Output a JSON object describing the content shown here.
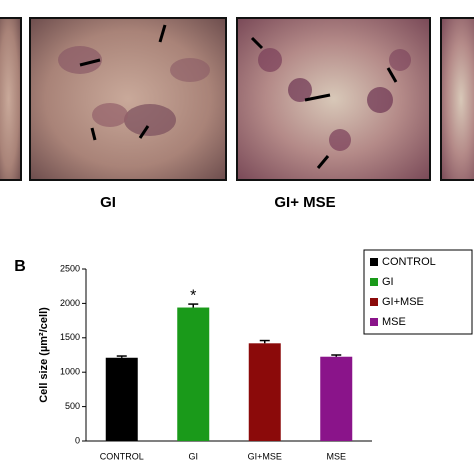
{
  "panels": {
    "labels": [
      "GI",
      "GI+ MSE"
    ],
    "letter": "B"
  },
  "chart_data": {
    "type": "bar",
    "y_label": "Cell size (µm²/cell)",
    "categories": [
      "CONTROL",
      "GI",
      "GI+MSE",
      "MSE"
    ],
    "values": [
      1210,
      1940,
      1420,
      1225
    ],
    "errors": [
      25,
      50,
      40,
      25
    ],
    "colors": [
      "#000000",
      "#1a9a1a",
      "#8b0a0a",
      "#8a148a"
    ],
    "annotation": "*",
    "ylim": [
      0,
      2500
    ],
    "yticks": [
      0,
      500,
      1000,
      1500,
      2000,
      2500
    ],
    "legend": "upper right"
  }
}
